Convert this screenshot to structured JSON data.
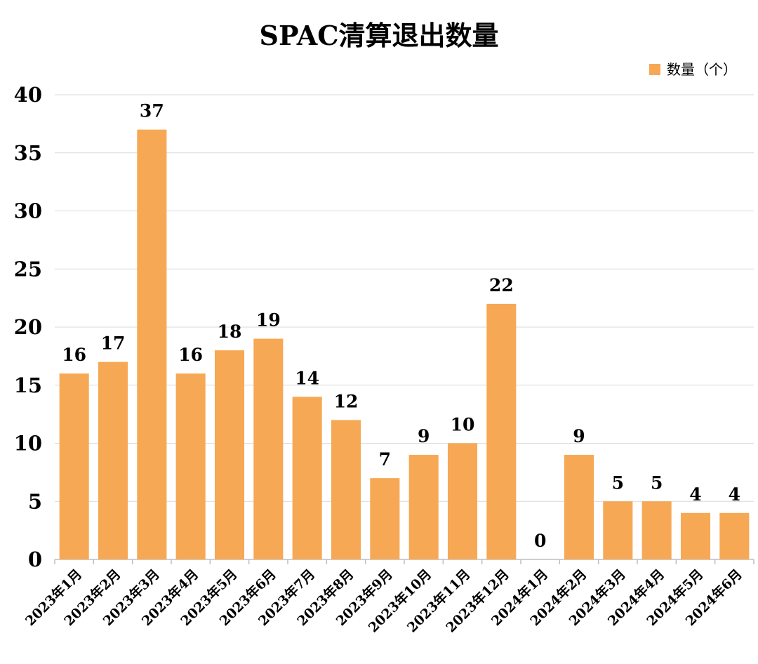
{
  "chart_data": {
    "type": "bar",
    "title": "SPAC清算退出数量",
    "xlabel": "",
    "ylabel": "",
    "categories": [
      "2023年1月",
      "2023年2月",
      "2023年3月",
      "2023年4月",
      "2023年5月",
      "2023年6月",
      "2023年7月",
      "2023年8月",
      "2023年9月",
      "2023年10月",
      "2023年11月",
      "2023年12月",
      "2024年1月",
      "2024年2月",
      "2024年3月",
      "2024年4月",
      "2024年5月",
      "2024年6月"
    ],
    "series": [
      {
        "name": "数量（个）",
        "values": [
          16,
          17,
          37,
          16,
          18,
          19,
          14,
          12,
          7,
          9,
          10,
          22,
          0,
          9,
          5,
          5,
          4,
          4
        ]
      }
    ],
    "ylim": [
      0,
      40
    ],
    "yticks": [
      0,
      5,
      10,
      15,
      20,
      25,
      30,
      35,
      40
    ],
    "grid": true,
    "legend_position": "top-right",
    "bar_color": "#F7A854"
  }
}
